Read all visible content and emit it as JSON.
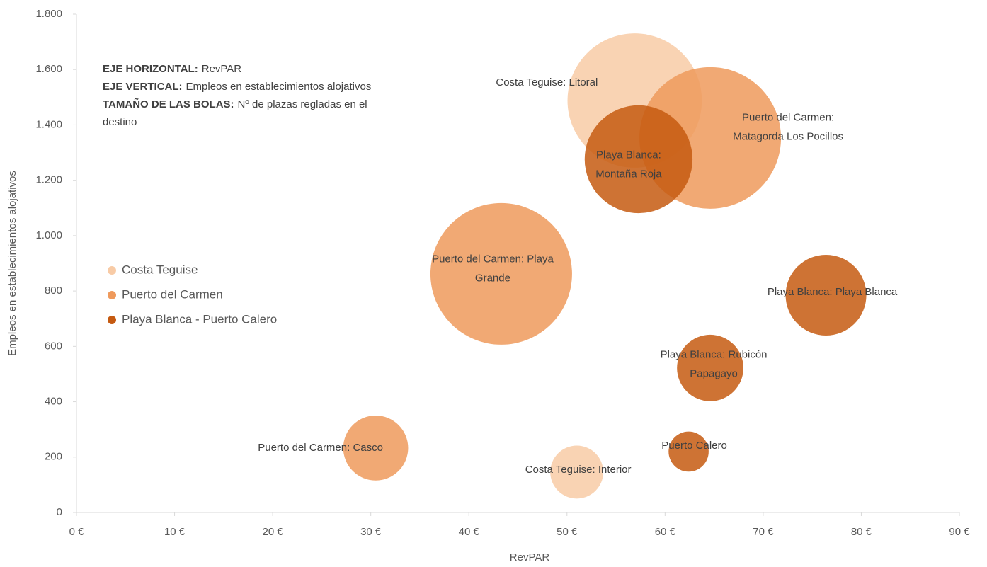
{
  "chart_data": {
    "type": "bubble",
    "xlabel": "RevPAR",
    "ylabel": "Empleos en establecimientos alojativos",
    "xlim": [
      0,
      90
    ],
    "xticks": [
      {
        "value": 0,
        "label": "0 €"
      },
      {
        "value": 10,
        "label": "10 €"
      },
      {
        "value": 20,
        "label": "20 €"
      },
      {
        "value": 30,
        "label": "30 €"
      },
      {
        "value": 40,
        "label": "40 €"
      },
      {
        "value": 50,
        "label": "50 €"
      },
      {
        "value": 60,
        "label": "60 €"
      },
      {
        "value": 70,
        "label": "70 €"
      },
      {
        "value": 80,
        "label": "80 €"
      },
      {
        "value": 90,
        "label": "90 €"
      }
    ],
    "ylim": [
      0,
      1800
    ],
    "yticks": [
      0,
      200,
      400,
      600,
      800,
      {
        "value": 1000,
        "label": "1.000"
      },
      {
        "value": 1200,
        "label": "1.200"
      },
      {
        "value": 1400,
        "label": "1.400"
      },
      {
        "value": 1600,
        "label": "1.600"
      },
      {
        "value": 1800,
        "label": "1.800"
      }
    ],
    "grid": false,
    "legend": "left",
    "annotation": [
      {
        "bold": "EJE HORIZONTAL:",
        "text": "RevPAR"
      },
      {
        "bold": "EJE VERTICAL:",
        "text": "Empleos en establecimientos alojativos"
      },
      {
        "bold": "TAMAÑO DE LAS BOLAS:",
        "text": "Nº de plazas regladas en el"
      },
      {
        "text": "destino"
      }
    ],
    "series": [
      {
        "name": "Costa Teguise",
        "color": "#f8cba6",
        "x": [
          56.9,
          51.0
        ],
        "y": [
          1488,
          146
        ],
        "sizes": [
          9000,
          1400
        ],
        "labels": [
          [
            "Costa Teguise: Litoral"
          ],
          [
            "Costa Teguise: Interior"
          ]
        ]
      },
      {
        "name": "Puerto del Carmen",
        "color": "#ef9a5c",
        "x": [
          64.6,
          43.3,
          30.5
        ],
        "y": [
          1353,
          862,
          233
        ],
        "sizes": [
          10000,
          10000,
          2100
        ],
        "labels": [
          [
            "Puerto del Carmen:",
            "Matagorda Los Pocillos"
          ],
          [
            "Puerto del Carmen: Playa",
            "Grande"
          ],
          [
            "Puerto del Carmen: Casco"
          ]
        ]
      },
      {
        "name": "Playa Blanca - Puerto Calero",
        "color": "#c55a11",
        "x": [
          57.3,
          76.4,
          64.6,
          62.4
        ],
        "y": [
          1276,
          785,
          522,
          220
        ],
        "sizes": [
          5800,
          3250,
          2200,
          800
        ],
        "labels": [
          [
            "Playa Blanca:",
            "Montaña Roja"
          ],
          [
            "Playa Blanca: Playa Blanca"
          ],
          [
            "Playa Blanca: Rubicón",
            "Papagayo"
          ],
          [
            "Puerto Calero"
          ]
        ]
      }
    ]
  }
}
